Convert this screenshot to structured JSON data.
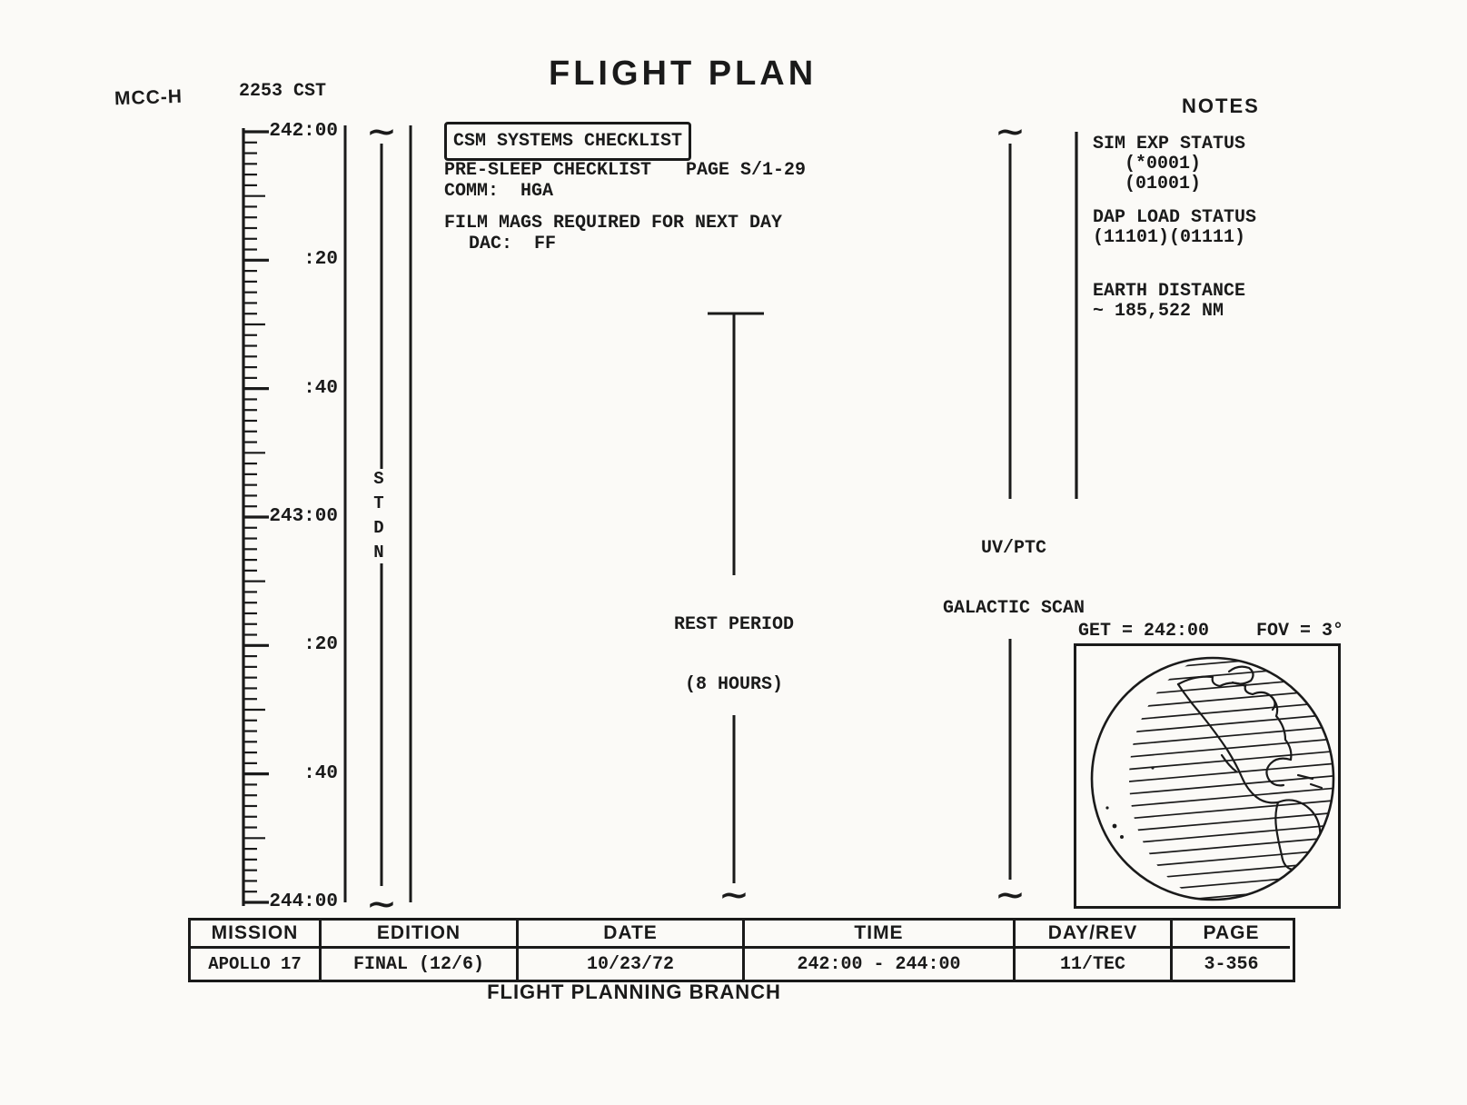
{
  "header": {
    "site": "MCC-H",
    "local_time": "2253 CST",
    "title": "FLIGHT PLAN",
    "notes_title": "NOTES"
  },
  "timeline": {
    "tick_labels": [
      "242:00",
      ":20",
      ":40",
      "243:00",
      ":20",
      ":40",
      "244:00"
    ],
    "stdn_label": "STDN"
  },
  "activities": {
    "csm_checklist_box": "CSM SYSTEMS CHECKLIST",
    "pre_sleep": "PRE-SLEEP CHECKLIST",
    "pre_sleep_page": "PAGE S/1-29",
    "comm": "COMM:  HGA",
    "film_mags": "FILM MAGS REQUIRED FOR NEXT DAY",
    "dac": "DAC:  FF",
    "rest_period_line1": "REST PERIOD",
    "rest_period_line2": "(8 HOURS)",
    "uv_ptc_line1": "UV/PTC",
    "uv_ptc_line2": "GALACTIC SCAN"
  },
  "notes": {
    "sim_exp_status": "SIM EXP STATUS",
    "sim_exp_value1": "(*0001)",
    "sim_exp_value2": "(01001)",
    "dap_load_status": "DAP LOAD STATUS",
    "dap_load_values": "(11101)(01111)",
    "earth_distance_label": "EARTH DISTANCE",
    "earth_distance_value": "~ 185,522 NM"
  },
  "globe": {
    "get_label": "GET = 242:00",
    "fov_label": "FOV = 3°"
  },
  "glyphs": {
    "line_break_tilde": "~"
  },
  "footer_table": {
    "columns": [
      {
        "header": "MISSION",
        "value": "APOLLO 17"
      },
      {
        "header": "EDITION",
        "value": "FINAL (12/6)"
      },
      {
        "header": "DATE",
        "value": "10/23/72"
      },
      {
        "header": "TIME",
        "value": "242:00 - 244:00"
      },
      {
        "header": "DAY/REV",
        "value": "11/TEC"
      },
      {
        "header": "PAGE",
        "value": "3-356"
      }
    ],
    "caption": "FLIGHT PLANNING BRANCH"
  }
}
